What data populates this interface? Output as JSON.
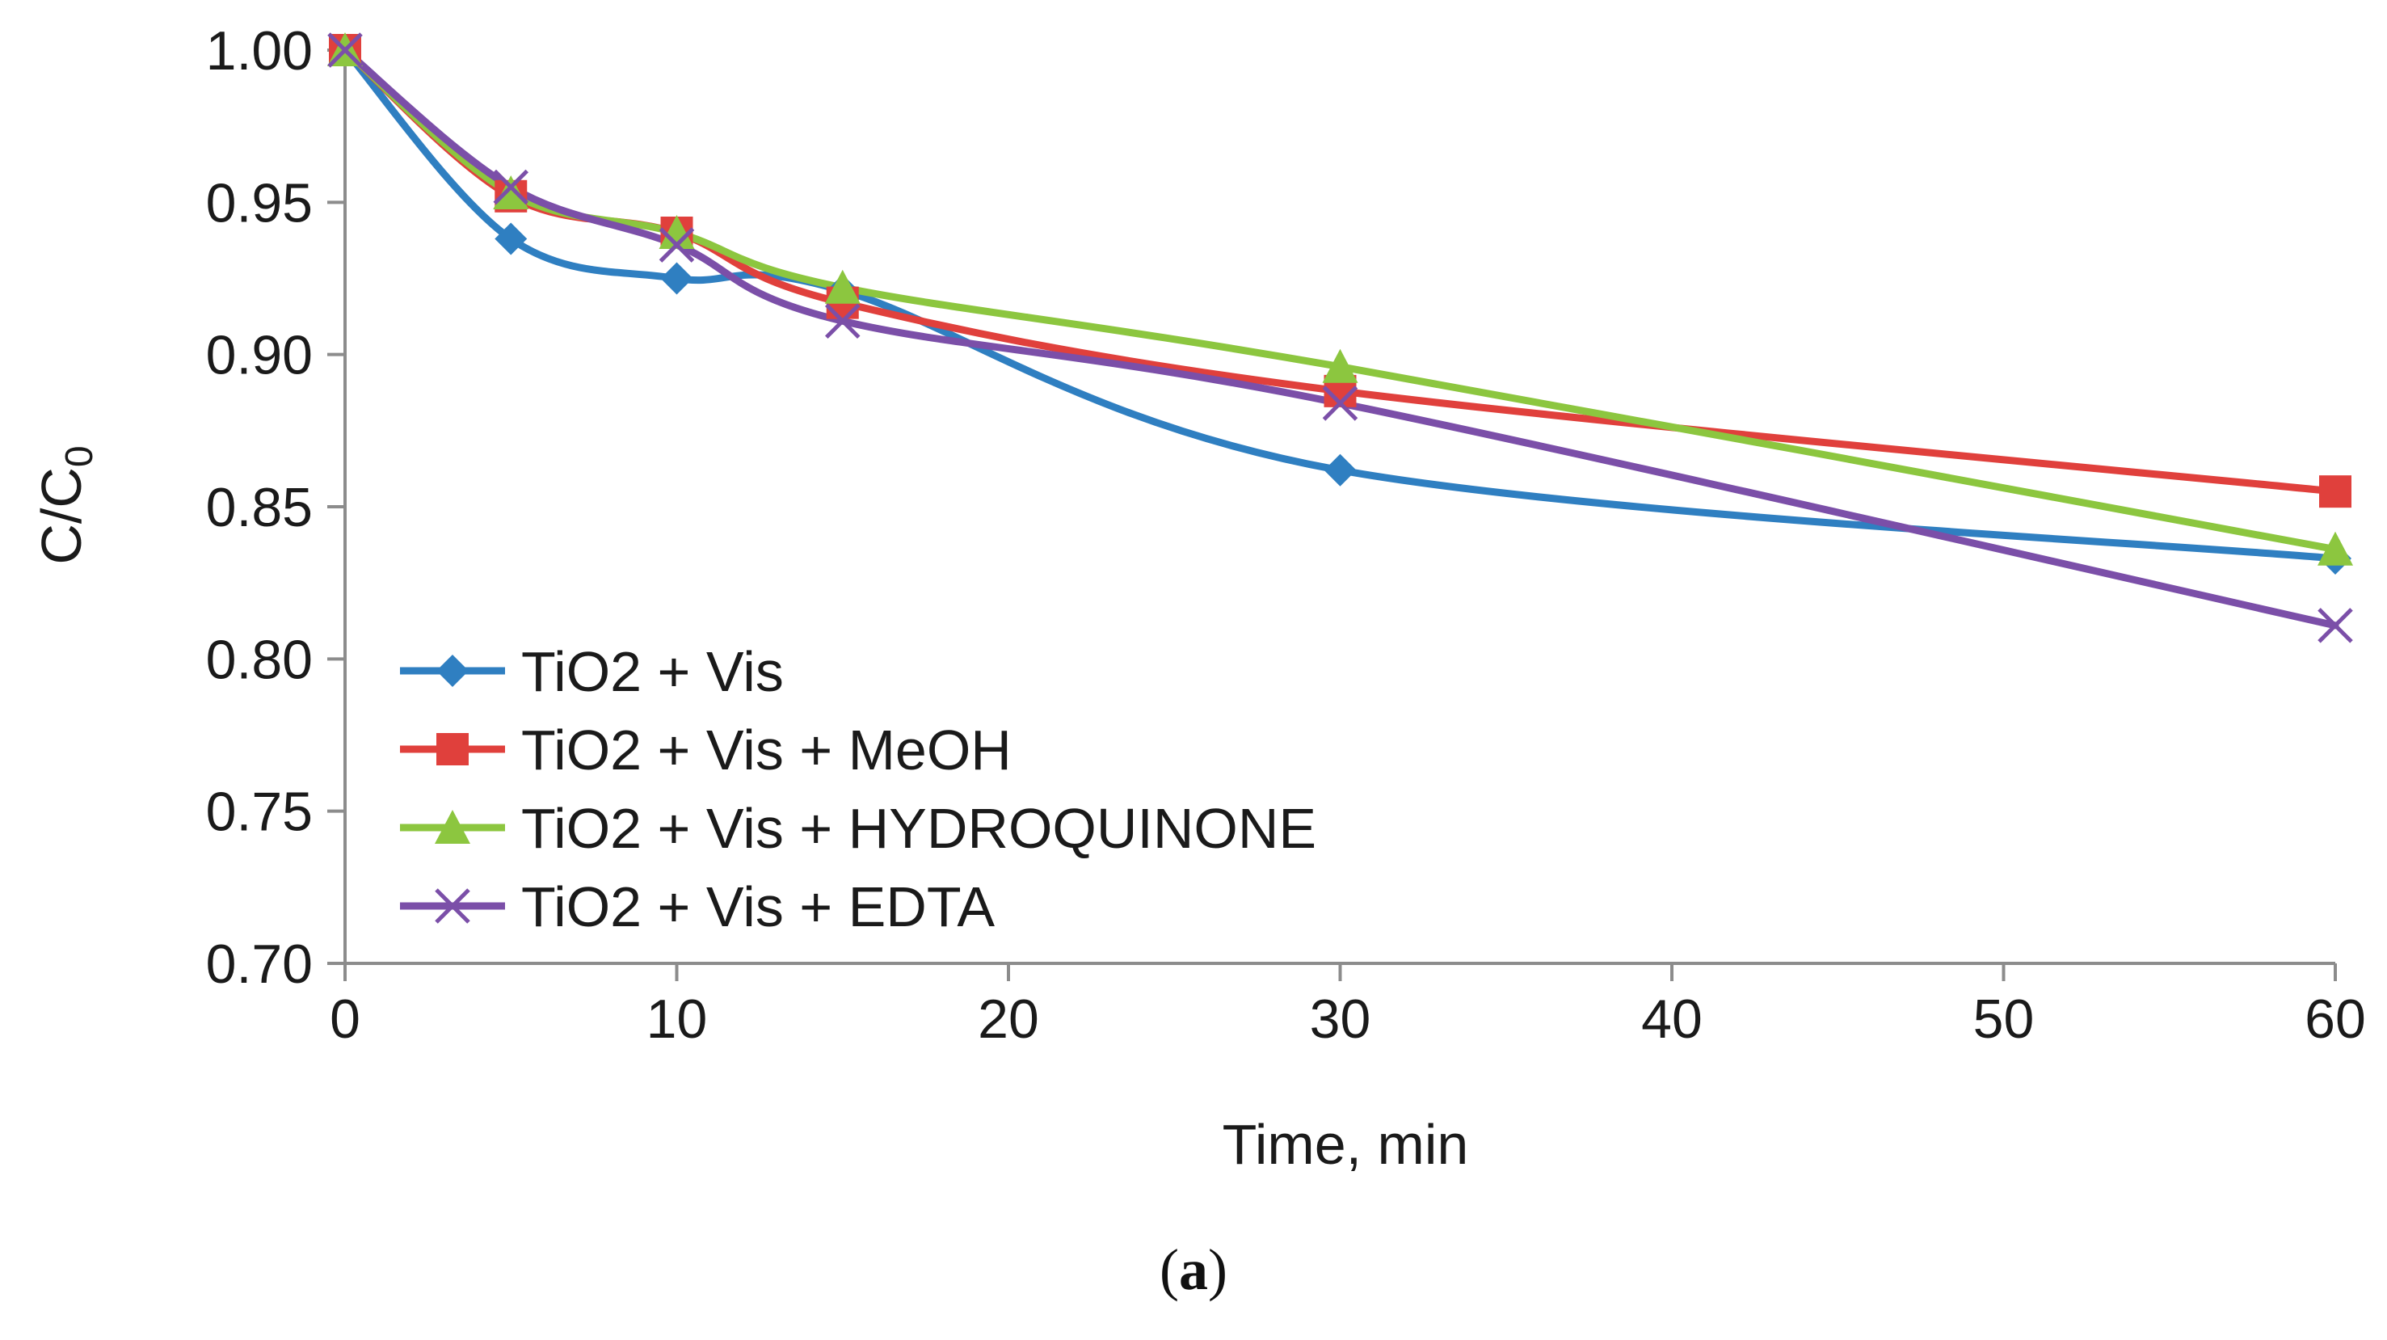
{
  "chart_data": {
    "type": "line",
    "title": "",
    "xlabel": "Time, min",
    "ylabel": "C/C",
    "ylabel_subscript": "0",
    "xlim": [
      0,
      60
    ],
    "ylim": [
      0.7,
      1.0
    ],
    "x_ticks": [
      "0",
      "10",
      "20",
      "30",
      "40",
      "50",
      "60"
    ],
    "y_ticks": [
      "0.70",
      "0.75",
      "0.80",
      "0.85",
      "0.90",
      "0.95",
      "1.00"
    ],
    "grid": false,
    "legend_position": "bottom-left",
    "series": [
      {
        "name": "TiO2  + Vis",
        "color": "#2f7fc1",
        "marker": "diamond",
        "x": [
          0,
          5,
          10,
          15,
          30,
          60
        ],
        "y": [
          1.0,
          0.938,
          0.925,
          0.921,
          0.862,
          0.833
        ]
      },
      {
        "name": "TiO2  + Vis + MeOH",
        "color": "#e0403c",
        "marker": "square",
        "x": [
          0,
          5,
          10,
          15,
          30,
          60
        ],
        "y": [
          1.0,
          0.952,
          0.94,
          0.917,
          0.888,
          0.855
        ]
      },
      {
        "name": "TiO2  + Vis + HYDROQUINONE",
        "color": "#8cc63f",
        "marker": "triangle",
        "x": [
          0,
          5,
          10,
          15,
          30,
          60
        ],
        "y": [
          1.0,
          0.953,
          0.94,
          0.922,
          0.896,
          0.836
        ]
      },
      {
        "name": "TiO2  + Vis + EDTA",
        "color": "#7b4fa8",
        "marker": "x",
        "x": [
          0,
          5,
          10,
          15,
          30,
          60
        ],
        "y": [
          1.0,
          0.955,
          0.936,
          0.911,
          0.884,
          0.811
        ]
      }
    ],
    "panel_label": "(a)",
    "panel_label_letter": "a"
  }
}
